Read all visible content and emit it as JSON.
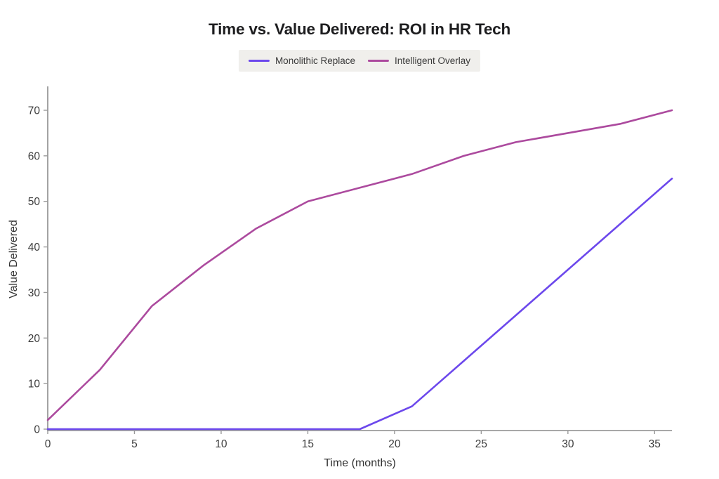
{
  "chart_data": {
    "type": "line",
    "title": "Time vs. Value Delivered: ROI in HR Tech",
    "xlabel": "Time (months)",
    "ylabel": "Value Delivered",
    "x": [
      0,
      3,
      6,
      9,
      12,
      15,
      18,
      21,
      24,
      27,
      30,
      33,
      36
    ],
    "series": [
      {
        "name": "Monolithic Replace",
        "color": "#6c48ec",
        "values": [
          0,
          0,
          0,
          0,
          0,
          0,
          0,
          5,
          15,
          25,
          35,
          45,
          55
        ]
      },
      {
        "name": "Intelligent Overlay",
        "color": "#ac4a9e",
        "values": [
          2,
          13,
          27,
          36,
          44,
          50,
          53,
          56,
          60,
          63,
          65,
          67,
          70
        ]
      }
    ],
    "xticks": [
      0,
      5,
      10,
      15,
      20,
      25,
      30,
      35
    ],
    "yticks": [
      0,
      10,
      20,
      30,
      40,
      50,
      60,
      70
    ],
    "xlim": [
      0,
      36
    ],
    "ylim": [
      0,
      70
    ],
    "grid": false,
    "legend_position": "top",
    "legend_background": "#f0efec",
    "axis_color": "#8c8c8c",
    "tick_color": "#9a9a9a",
    "tick_label_color": "#3c3c3c",
    "title_color": "#1d1d1f",
    "background_color": "#ffffff"
  }
}
